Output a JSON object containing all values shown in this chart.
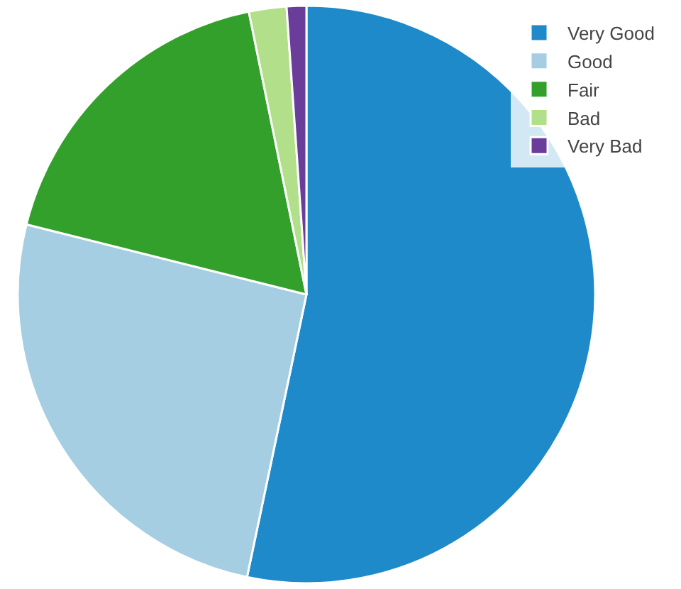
{
  "chart_data": {
    "type": "pie",
    "categories": [
      "Very Good",
      "Good",
      "Fair",
      "Bad",
      "Very Bad"
    ],
    "values": [
      53.3,
      25.6,
      17.9,
      2.1,
      1.1
    ],
    "colors": [
      "#1f8ac9",
      "#a6cee3",
      "#33a02c",
      "#b2df8a",
      "#6a3d9a"
    ],
    "legend": "top right"
  }
}
